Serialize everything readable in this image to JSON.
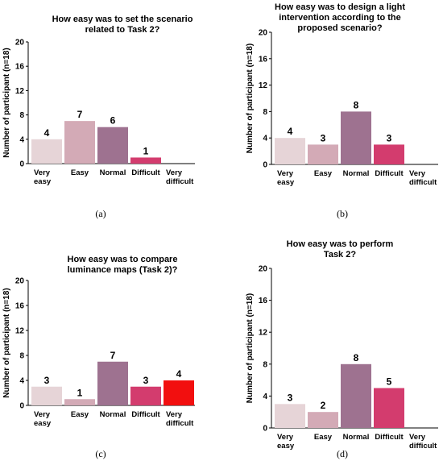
{
  "chart_data": [
    {
      "type": "bar",
      "title": [
        "How easy was to set the scenario",
        "related to Task 2?"
      ],
      "ylabel": "Number of participant (n=18)",
      "ylim": [
        0,
        20
      ],
      "yticks": [
        0,
        4,
        8,
        12,
        16,
        20
      ],
      "categories": [
        [
          "Very",
          "easy"
        ],
        [
          "Easy"
        ],
        [
          "Normal"
        ],
        [
          "Difficult"
        ],
        [
          "Very",
          "difficult"
        ]
      ],
      "values": [
        4,
        7,
        6,
        1,
        0
      ],
      "data_labels": [
        "4",
        "7",
        "6",
        "1",
        ""
      ],
      "colors": [
        "#e6d4d7",
        "#d3aab6",
        "#9e7290",
        "#d33c6e",
        "#f20f0f"
      ],
      "caption": "(a)",
      "grid": false
    },
    {
      "type": "bar",
      "title": [
        "How easy was to design a light",
        "intervention according to the",
        "proposed scenario?"
      ],
      "ylabel": "Number of participant (n=18)",
      "ylim": [
        0,
        20
      ],
      "yticks": [
        0,
        4,
        8,
        12,
        16,
        20
      ],
      "categories": [
        [
          "Very",
          "easy"
        ],
        [
          "Easy"
        ],
        [
          "Normal"
        ],
        [
          "Difficult"
        ],
        [
          "Very",
          "difficult"
        ]
      ],
      "values": [
        4,
        3,
        8,
        3,
        0
      ],
      "data_labels": [
        "4",
        "3",
        "8",
        "3",
        ""
      ],
      "colors": [
        "#e6d4d7",
        "#d3aab6",
        "#9e7290",
        "#d33c6e",
        "#f20f0f"
      ],
      "caption": "(b)",
      "grid": false
    },
    {
      "type": "bar",
      "title": [
        "How easy was to compare",
        "luminance maps (Task 2)?"
      ],
      "ylabel": "Number of participant (n=18)",
      "ylim": [
        0,
        20
      ],
      "yticks": [
        0,
        4,
        8,
        12,
        16,
        20
      ],
      "categories": [
        [
          "Very",
          "easy"
        ],
        [
          "Easy"
        ],
        [
          "Normal"
        ],
        [
          "Difficult"
        ],
        [
          "Very",
          "difficult"
        ]
      ],
      "values": [
        3,
        1,
        7,
        3,
        4
      ],
      "data_labels": [
        "3",
        "1",
        "7",
        "3",
        "4"
      ],
      "colors": [
        "#e6d4d7",
        "#d3aab6",
        "#9e7290",
        "#d33c6e",
        "#f20f0f"
      ],
      "caption": "(c)",
      "grid": false
    },
    {
      "type": "bar",
      "title": [
        "How easy was to perform",
        "Task 2?"
      ],
      "ylabel": "Number of participant (n=18)",
      "ylim": [
        0,
        20
      ],
      "yticks": [
        0,
        4,
        8,
        12,
        16,
        20
      ],
      "categories": [
        [
          "Very",
          "easy"
        ],
        [
          "Easy"
        ],
        [
          "Normal"
        ],
        [
          "Difficult"
        ],
        [
          "Very",
          "difficult"
        ]
      ],
      "values": [
        3,
        2,
        8,
        5,
        0
      ],
      "data_labels": [
        "3",
        "2",
        "8",
        "5",
        ""
      ],
      "colors": [
        "#e6d4d7",
        "#d3aab6",
        "#9e7290",
        "#d33c6e",
        "#f20f0f"
      ],
      "caption": "(d)",
      "grid": false
    }
  ]
}
